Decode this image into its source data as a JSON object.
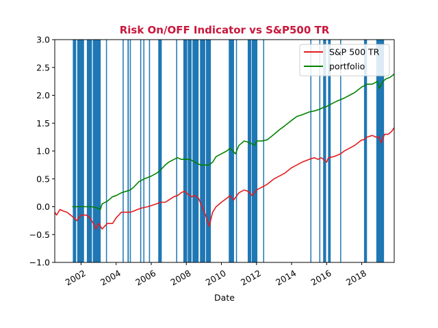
{
  "chart_data": {
    "type": "line",
    "title": "Risk On/OFF Indicator vs S&P500 TR",
    "title_color": "#c8173c",
    "xlabel": "Date",
    "ylabel": "",
    "xlim": [
      2000.5,
      2019.85
    ],
    "ylim": [
      -1.0,
      3.0
    ],
    "yticks": [
      -1.0,
      -0.5,
      0.0,
      0.5,
      1.0,
      1.5,
      2.0,
      2.5,
      3.0
    ],
    "ytick_labels": [
      "−1.0",
      "−0.5",
      "0.0",
      "0.5",
      "1.0",
      "1.5",
      "2.0",
      "2.5",
      "3.0"
    ],
    "xticks": [
      2002,
      2004,
      2006,
      2008,
      2010,
      2012,
      2014,
      2016,
      2018
    ],
    "xtick_labels": [
      "2002",
      "2004",
      "2006",
      "2008",
      "2010",
      "2012",
      "2014",
      "2016",
      "2018"
    ],
    "legend_position": "top-right",
    "risk_off_color": "#1f77b4",
    "risk_off_periods": [
      [
        2001.53,
        2001.72
      ],
      [
        2001.78,
        2002.17
      ],
      [
        2002.33,
        2002.62
      ],
      [
        2002.67,
        2003.12
      ],
      [
        2003.42,
        2003.47
      ],
      [
        2004.37,
        2004.43
      ],
      [
        2004.65,
        2004.72
      ],
      [
        2004.78,
        2004.83
      ],
      [
        2005.37,
        2005.43
      ],
      [
        2005.55,
        2005.6
      ],
      [
        2005.87,
        2005.93
      ],
      [
        2006.4,
        2006.6
      ],
      [
        2007.42,
        2007.48
      ],
      [
        2007.83,
        2008.05
      ],
      [
        2008.08,
        2008.3
      ],
      [
        2008.35,
        2008.7
      ],
      [
        2008.78,
        2009.08
      ],
      [
        2009.12,
        2009.4
      ],
      [
        2010.42,
        2010.72
      ],
      [
        2010.83,
        2010.88
      ],
      [
        2011.5,
        2011.7
      ],
      [
        2011.73,
        2012.05
      ],
      [
        2012.38,
        2012.43
      ],
      [
        2015.07,
        2015.12
      ],
      [
        2015.58,
        2015.63
      ],
      [
        2015.8,
        2015.97
      ],
      [
        2016.08,
        2016.23
      ],
      [
        2016.77,
        2016.82
      ],
      [
        2018.13,
        2018.3
      ],
      [
        2018.83,
        2019.27
      ]
    ],
    "series": [
      {
        "name": "S&P 500 TR",
        "color": "#e41a1c",
        "x": [
          2000.5,
          2000.6,
          2000.8,
          2001.0,
          2001.2,
          2001.4,
          2001.6,
          2001.75,
          2002.0,
          2002.3,
          2002.5,
          2002.7,
          2002.85,
          2003.0,
          2003.2,
          2003.5,
          2003.8,
          2004.0,
          2004.3,
          2004.6,
          2004.8,
          2005.0,
          2005.2,
          2005.5,
          2005.8,
          2006.0,
          2006.3,
          2006.5,
          2006.8,
          2007.0,
          2007.3,
          2007.5,
          2007.7,
          2007.9,
          2008.1,
          2008.3,
          2008.5,
          2008.7,
          2008.9,
          2009.1,
          2009.2,
          2009.3,
          2009.5,
          2009.7,
          2010.0,
          2010.3,
          2010.5,
          2010.7,
          2011.0,
          2011.3,
          2011.5,
          2011.75,
          2012.0,
          2012.3,
          2012.6,
          2013.0,
          2013.3,
          2013.6,
          2014.0,
          2014.3,
          2014.6,
          2015.0,
          2015.3,
          2015.5,
          2015.7,
          2016.0,
          2016.1,
          2016.4,
          2016.8,
          2017.0,
          2017.3,
          2017.6,
          2018.0,
          2018.1,
          2018.3,
          2018.6,
          2018.8,
          2019.0,
          2019.1,
          2019.3,
          2019.5,
          2019.7,
          2019.85
        ],
        "y": [
          -0.1,
          -0.15,
          -0.05,
          -0.08,
          -0.1,
          -0.15,
          -0.2,
          -0.25,
          -0.15,
          -0.15,
          -0.2,
          -0.3,
          -0.4,
          -0.3,
          -0.4,
          -0.3,
          -0.3,
          -0.2,
          -0.1,
          -0.1,
          -0.1,
          -0.08,
          -0.05,
          -0.02,
          0.0,
          0.02,
          0.05,
          0.08,
          0.08,
          0.12,
          0.18,
          0.2,
          0.25,
          0.28,
          0.22,
          0.18,
          0.2,
          0.15,
          0.0,
          -0.15,
          -0.25,
          -0.35,
          -0.1,
          0.0,
          0.08,
          0.15,
          0.2,
          0.12,
          0.25,
          0.3,
          0.28,
          0.2,
          0.3,
          0.35,
          0.4,
          0.5,
          0.55,
          0.6,
          0.7,
          0.75,
          0.8,
          0.85,
          0.88,
          0.85,
          0.88,
          0.8,
          0.88,
          0.9,
          0.95,
          1.0,
          1.05,
          1.1,
          1.2,
          1.2,
          1.25,
          1.28,
          1.25,
          1.25,
          1.15,
          1.3,
          1.3,
          1.35,
          1.42
        ]
      },
      {
        "name": "portfolio",
        "color": "#008000",
        "x": [
          2001.5,
          2001.75,
          2002.0,
          2002.3,
          2002.6,
          2002.9,
          2003.1,
          2003.2,
          2003.5,
          2003.8,
          2004.0,
          2004.3,
          2004.6,
          2004.8,
          2005.0,
          2005.3,
          2005.6,
          2006.0,
          2006.3,
          2006.5,
          2006.8,
          2007.0,
          2007.3,
          2007.5,
          2007.7,
          2008.0,
          2008.2,
          2008.5,
          2008.8,
          2009.0,
          2009.3,
          2009.5,
          2009.7,
          2010.0,
          2010.3,
          2010.5,
          2010.8,
          2011.0,
          2011.3,
          2011.6,
          2011.9,
          2012.0,
          2012.3,
          2012.6,
          2013.0,
          2013.3,
          2013.6,
          2014.0,
          2014.3,
          2014.6,
          2015.0,
          2015.3,
          2015.6,
          2015.8,
          2016.0,
          2016.3,
          2016.6,
          2017.0,
          2017.3,
          2017.6,
          2018.0,
          2018.3,
          2018.6,
          2018.9,
          2019.0,
          2019.2,
          2019.4,
          2019.6,
          2019.85
        ],
        "y": [
          0.0,
          0.0,
          0.0,
          0.0,
          0.0,
          -0.02,
          -0.05,
          0.05,
          0.1,
          0.18,
          0.2,
          0.25,
          0.28,
          0.3,
          0.35,
          0.45,
          0.5,
          0.55,
          0.6,
          0.65,
          0.75,
          0.8,
          0.85,
          0.88,
          0.85,
          0.85,
          0.85,
          0.8,
          0.75,
          0.75,
          0.75,
          0.8,
          0.9,
          0.95,
          1.0,
          1.05,
          0.95,
          1.1,
          1.18,
          1.15,
          1.1,
          1.18,
          1.18,
          1.2,
          1.3,
          1.38,
          1.45,
          1.55,
          1.62,
          1.65,
          1.7,
          1.72,
          1.75,
          1.78,
          1.8,
          1.85,
          1.9,
          1.95,
          2.0,
          2.05,
          2.15,
          2.2,
          2.2,
          2.25,
          2.12,
          2.25,
          2.3,
          2.32,
          2.38
        ]
      }
    ]
  }
}
